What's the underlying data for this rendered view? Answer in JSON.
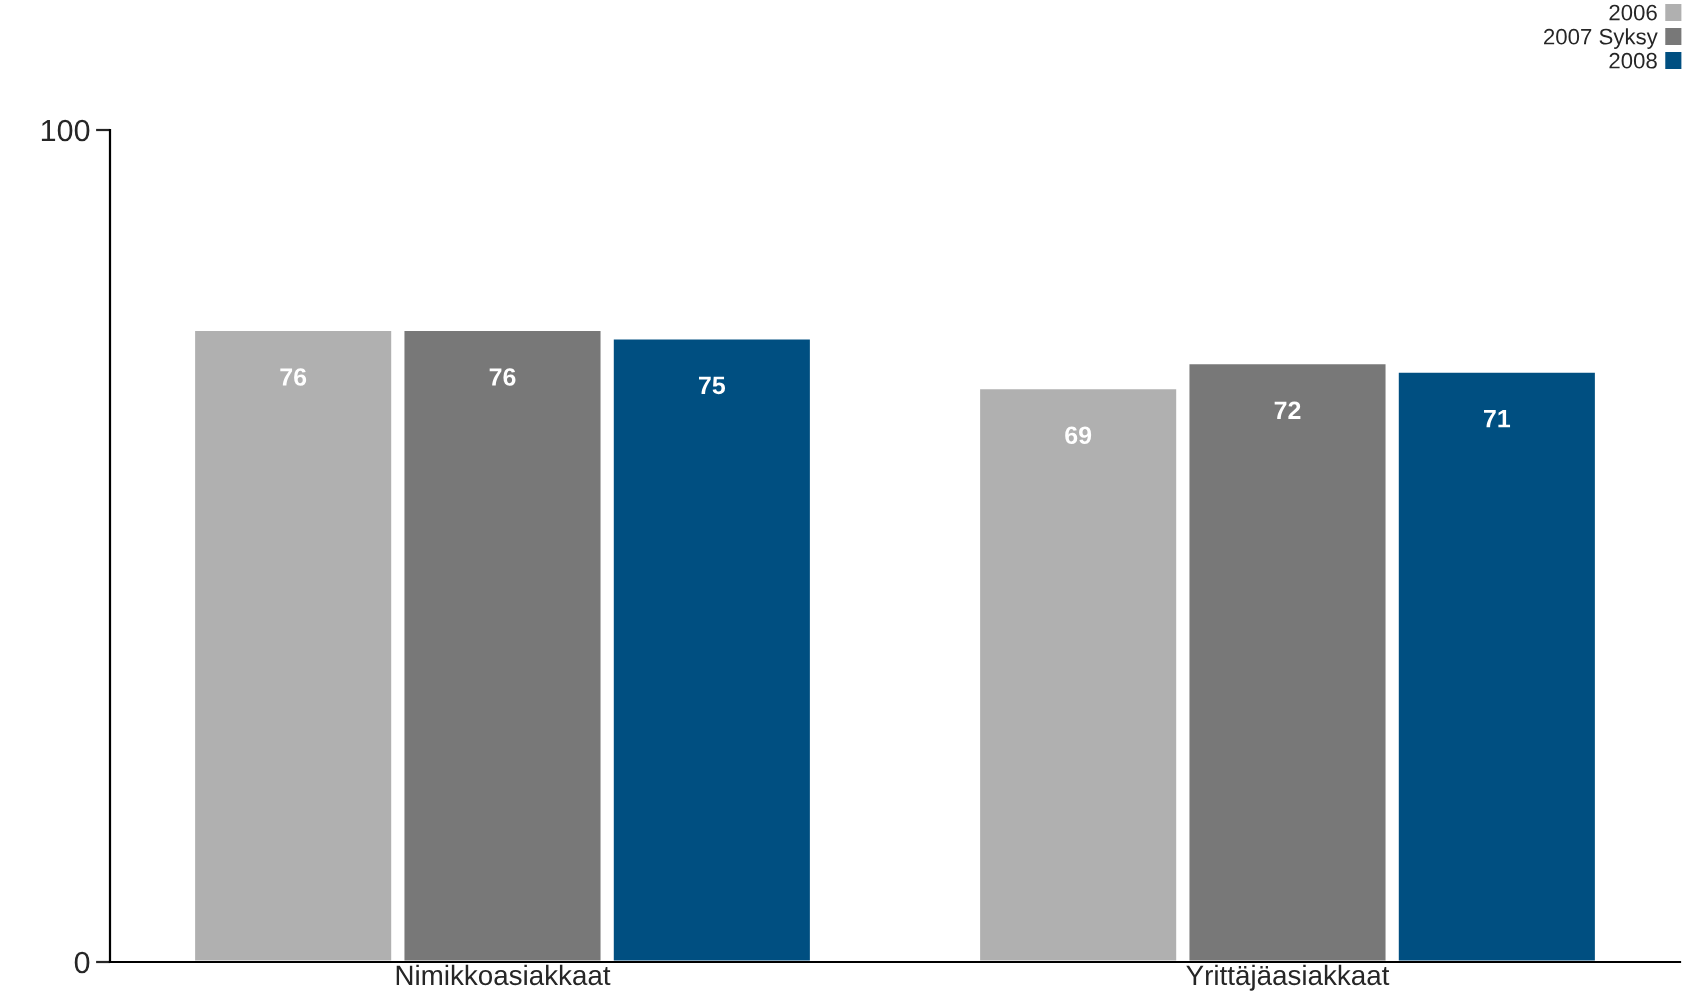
{
  "chart_data": {
    "type": "bar",
    "categories": [
      "Nimikkoasiakkaat",
      "Yrittäjäasiakkaat"
    ],
    "series": [
      {
        "name": "2006",
        "color": "#b0b0b0",
        "values": [
          76,
          69
        ]
      },
      {
        "name": "2007 Syksy",
        "color": "#787878",
        "values": [
          76,
          72
        ]
      },
      {
        "name": "2008",
        "color": "#004f81",
        "values": [
          75,
          71
        ]
      }
    ],
    "ylim": [
      0,
      100
    ],
    "yticks": [
      0,
      100
    ],
    "grid": false,
    "legend": "top right",
    "data_labels": true
  }
}
